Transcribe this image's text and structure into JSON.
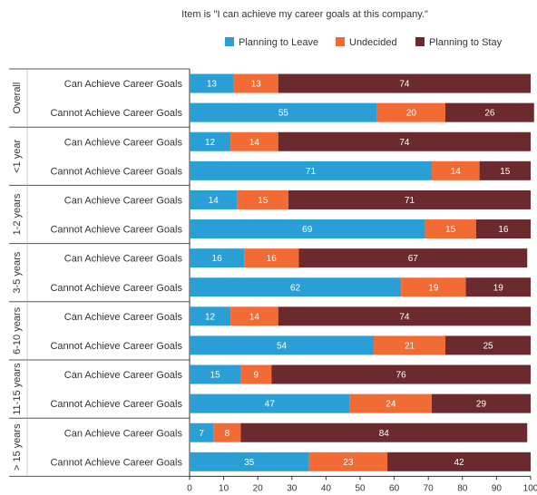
{
  "chart_data": {
    "type": "bar",
    "orientation": "horizontal",
    "stacked": true,
    "title": "Item is \"I can achieve my career goals at this company.\"",
    "legend_position": "top",
    "groups": [
      {
        "label": "Overall",
        "rows": [
          {
            "label": "Can Achieve Career Goals",
            "values": [
              13,
              13,
              74
            ]
          },
          {
            "label": "Cannot Achieve Career Goals",
            "values": [
              55,
              20,
              26
            ]
          }
        ]
      },
      {
        "label": "<1 year",
        "rows": [
          {
            "label": "Can Achieve Career Goals",
            "values": [
              12,
              14,
              74
            ]
          },
          {
            "label": "Cannot Achieve Career Goals",
            "values": [
              71,
              14,
              15
            ]
          }
        ]
      },
      {
        "label": "1-2 years",
        "rows": [
          {
            "label": "Can Achieve Career Goals",
            "values": [
              14,
              15,
              71
            ]
          },
          {
            "label": "Cannot Achieve Career Goals",
            "values": [
              69,
              15,
              16
            ]
          }
        ]
      },
      {
        "label": "3-5 years",
        "rows": [
          {
            "label": "Can Achieve Career Goals",
            "values": [
              16,
              16,
              67
            ]
          },
          {
            "label": "Cannot Achieve Career Goals",
            "values": [
              62,
              19,
              19
            ]
          }
        ]
      },
      {
        "label": "6-10 years",
        "rows": [
          {
            "label": "Can Achieve Career Goals",
            "values": [
              12,
              14,
              74
            ]
          },
          {
            "label": "Cannot Achieve Career Goals",
            "values": [
              54,
              21,
              25
            ]
          }
        ]
      },
      {
        "label": "11-15 years",
        "rows": [
          {
            "label": "Can Achieve Career Goals",
            "values": [
              15,
              9,
              76
            ]
          },
          {
            "label": "Cannot Achieve Career Goals",
            "values": [
              47,
              24,
              29
            ]
          }
        ]
      },
      {
        "label": "> 15 years",
        "rows": [
          {
            "label": "Can Achieve Career Goals",
            "values": [
              7,
              8,
              84
            ]
          },
          {
            "label": "Cannot Achieve Career Goals",
            "values": [
              35,
              23,
              42
            ]
          }
        ]
      }
    ],
    "series": [
      {
        "name": "Planning to Leave",
        "color": "#2a9fd6"
      },
      {
        "name": "Undecided",
        "color": "#f26b35"
      },
      {
        "name": "Planning to Stay",
        "color": "#6b2a2e"
      }
    ],
    "x_ticks": [
      0,
      10,
      20,
      30,
      40,
      50,
      60,
      70,
      80,
      90,
      100
    ],
    "xlim": [
      0,
      100
    ],
    "grid": false
  }
}
